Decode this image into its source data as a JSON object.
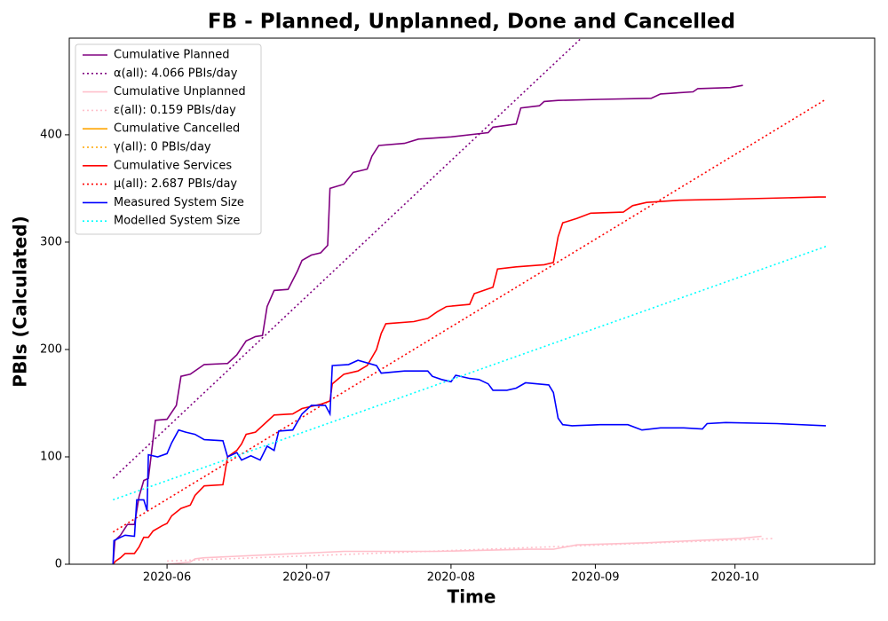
{
  "chart_data": {
    "type": "line",
    "title": "FB - Planned, Unplanned, Done  and Cancelled",
    "x_label": "Time",
    "y_label": "PBIs (Calculated)",
    "xlim": [
      131,
      304
    ],
    "ylim": [
      0,
      490
    ],
    "xticks": [
      {
        "value": 152,
        "label": "2020-06"
      },
      {
        "value": 182,
        "label": "2020-07"
      },
      {
        "value": 213,
        "label": "2020-08"
      },
      {
        "value": 244,
        "label": "2020-09"
      },
      {
        "value": 274,
        "label": "2020-10"
      }
    ],
    "yticks": [
      0,
      100,
      200,
      300,
      400
    ],
    "legend": "upper left",
    "series": [
      {
        "name": "Cumulative Planned",
        "color": "#800080",
        "style": "solid",
        "x": [
          140.4,
          140.8,
          142,
          143.5,
          145,
          146,
          147,
          148,
          149.5,
          152,
          154,
          155,
          157,
          160,
          165,
          167,
          169,
          171,
          172.5,
          173.5,
          175,
          178,
          180,
          181,
          183,
          185,
          186.5,
          187,
          190,
          192,
          195,
          196,
          197.5,
          203,
          206,
          213,
          221,
          222,
          227,
          228,
          232,
          233,
          236,
          245,
          256,
          258,
          265,
          266,
          273,
          275.7
        ],
        "values": [
          0,
          22,
          27,
          37,
          37,
          63,
          78,
          80,
          134,
          135,
          148,
          175,
          177,
          186,
          187,
          195,
          208,
          212,
          213,
          240,
          255,
          256,
          273,
          283,
          288,
          290,
          297,
          350,
          354,
          365,
          368,
          380,
          390,
          392,
          396,
          398,
          402,
          407,
          410,
          425,
          427,
          431,
          432,
          433,
          434,
          438,
          440,
          443,
          444,
          446
        ]
      },
      {
        "name": "α(all): 4.066 PBIs/day",
        "color": "#800080",
        "style": "dotted",
        "x": [
          140.4,
          241
        ],
        "values": [
          80,
          490
        ]
      },
      {
        "name": "Cumulative Unplanned",
        "color": "#ffc0cb",
        "style": "solid",
        "x": [
          152,
          157,
          158,
          160,
          165,
          175,
          190,
          210,
          230,
          235,
          240,
          255,
          265,
          275,
          279.7
        ],
        "values": [
          0,
          2,
          5,
          6,
          7,
          9,
          12,
          12,
          14,
          14,
          18,
          20,
          22,
          24,
          26
        ]
      },
      {
        "name": "ε(all): 0.159 PBIs/day",
        "color": "#ffc0cb",
        "style": "dotted",
        "x": [
          152,
          282.5
        ],
        "values": [
          3,
          24
        ]
      },
      {
        "name": "Cumulative Cancelled",
        "color": "#ffa500",
        "style": "solid",
        "x": [],
        "values": []
      },
      {
        "name": "γ(all): 0 PBIs/day",
        "color": "#ffa500",
        "style": "dotted",
        "x": [],
        "values": []
      },
      {
        "name": "Cumulative Services",
        "color": "#ff0000",
        "style": "solid",
        "x": [
          140.4,
          141,
          142,
          143,
          145,
          146,
          147,
          148,
          149,
          151,
          152,
          153,
          155,
          157,
          158,
          160,
          164,
          165,
          167,
          168,
          169,
          171,
          173,
          175,
          179,
          181,
          185,
          187,
          187.5,
          190,
          193,
          195,
          197,
          198,
          199,
          205,
          208,
          210,
          212,
          217,
          218,
          222,
          223,
          227,
          233,
          235,
          236,
          237,
          240,
          243,
          250,
          252,
          255,
          262,
          273,
          292,
          293.5
        ],
        "values": [
          0,
          3,
          6,
          10,
          10,
          16,
          25,
          25,
          31,
          36,
          38,
          45,
          52,
          55,
          64,
          73,
          74,
          100,
          106,
          112,
          121,
          123,
          131,
          139,
          140,
          145,
          149,
          152,
          168,
          177,
          180,
          185,
          200,
          215,
          224,
          226,
          229,
          235,
          240,
          242,
          252,
          258,
          275,
          277,
          279,
          281,
          305,
          318,
          322,
          327,
          328,
          334,
          337,
          339,
          340,
          342,
          342
        ]
      },
      {
        "name": "μ(all): 2.687 PBIs/day",
        "color": "#ff0000",
        "style": "dotted",
        "x": [
          140.4,
          293.5
        ],
        "values": [
          30,
          433
        ]
      },
      {
        "name": "Measured System Size",
        "color": "#0000ff",
        "style": "solid",
        "x": [
          140.4,
          140.6,
          142,
          143,
          145,
          145.5,
          147,
          147.7,
          148,
          150,
          152,
          153,
          154.5,
          156,
          158,
          160,
          164,
          165,
          167,
          168,
          170,
          172,
          173.5,
          175,
          176,
          179,
          181,
          183,
          186,
          187,
          187.5,
          191,
          193,
          197,
          198,
          203,
          208,
          209,
          211,
          213,
          214,
          217,
          219,
          221,
          222,
          225,
          227,
          229,
          234,
          235,
          236,
          237,
          239,
          245,
          251,
          254,
          258,
          263,
          267,
          268,
          272,
          283,
          293.5
        ],
        "values": [
          0,
          22,
          25,
          27,
          26,
          60,
          60,
          50,
          102,
          100,
          103,
          113,
          125,
          123,
          121,
          116,
          115,
          100,
          104,
          97,
          101,
          97,
          110,
          106,
          124,
          125,
          140,
          148,
          148,
          140,
          185,
          186,
          190,
          185,
          178,
          180,
          180,
          175,
          172,
          170,
          176,
          173,
          172,
          168,
          162,
          162,
          164,
          169,
          167,
          160,
          136,
          130,
          129,
          130,
          130,
          125,
          127,
          127,
          126,
          131,
          132,
          131,
          129
        ]
      },
      {
        "name": "Modelled System Size",
        "color": "#00ffff",
        "style": "dotted",
        "x": [
          140.4,
          293.5
        ],
        "values": [
          60,
          296
        ]
      }
    ]
  }
}
